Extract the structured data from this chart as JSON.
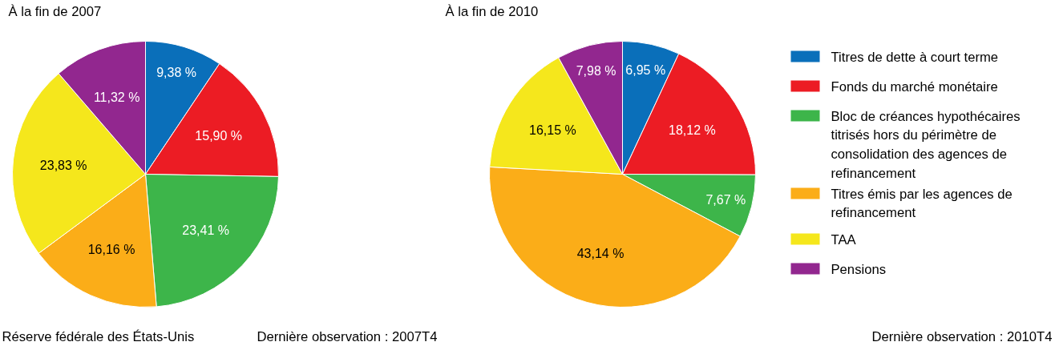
{
  "chart_data": [
    {
      "type": "pie",
      "title": "À la fin de 2007",
      "values": [
        9.38,
        15.9,
        23.41,
        16.16,
        23.83,
        11.32
      ],
      "value_labels": [
        "9,38 %",
        "15,90 %",
        "23,41 %",
        "16,16 %",
        "23,83 %",
        "11,32 %"
      ],
      "colors": [
        "#0a6fba",
        "#ec1c24",
        "#3db54a",
        "#fbad18",
        "#f5e71c",
        "#92278f"
      ],
      "annotations": [
        "Réserve fédérale des États-Unis",
        "Dernière observation : 2007T4"
      ]
    },
    {
      "type": "pie",
      "title": "À la fin de 2010",
      "categories": [
        "Titres de dette à court terme",
        "Fonds du marché monétaire",
        "Bloc de créances hypothécaires titrisés hors du périmètre de consolidation des agences de refinancement",
        "Titres émis par les agences de refinancement",
        "TAA",
        "Pensions"
      ],
      "values": [
        6.95,
        18.12,
        7.67,
        43.14,
        16.15,
        7.98
      ],
      "value_labels": [
        "6,95 %",
        "18,12 %",
        "7,67 %",
        "43,14 %",
        "16,15 %",
        "7,98 %"
      ],
      "colors": [
        "#0a6fba",
        "#ec1c24",
        "#3db54a",
        "#fbad18",
        "#f5e71c",
        "#92278f"
      ],
      "legend": "right",
      "annotations": [
        "Dernière observation : 2010T4"
      ]
    }
  ]
}
